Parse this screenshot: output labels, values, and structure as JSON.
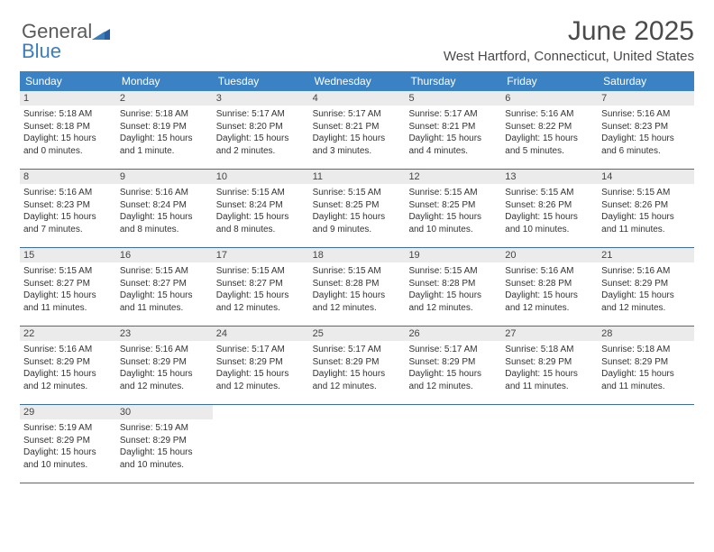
{
  "logo": {
    "general": "General",
    "blue": "Blue"
  },
  "title": "June 2025",
  "location": "West Hartford, Connecticut, United States",
  "colors": {
    "header_bar": "#3b82c4",
    "header_text": "#ffffff",
    "daynum_bg": "#ebebeb",
    "rule": "#3b6fa0",
    "body_text": "#333333",
    "logo_gray": "#5a5a5a",
    "logo_blue": "#3b7ec0"
  },
  "daysOfWeek": [
    "Sunday",
    "Monday",
    "Tuesday",
    "Wednesday",
    "Thursday",
    "Friday",
    "Saturday"
  ],
  "weeks": [
    [
      {
        "n": "1",
        "sr": "Sunrise: 5:18 AM",
        "ss": "Sunset: 8:18 PM",
        "dl": "Daylight: 15 hours and 0 minutes."
      },
      {
        "n": "2",
        "sr": "Sunrise: 5:18 AM",
        "ss": "Sunset: 8:19 PM",
        "dl": "Daylight: 15 hours and 1 minute."
      },
      {
        "n": "3",
        "sr": "Sunrise: 5:17 AM",
        "ss": "Sunset: 8:20 PM",
        "dl": "Daylight: 15 hours and 2 minutes."
      },
      {
        "n": "4",
        "sr": "Sunrise: 5:17 AM",
        "ss": "Sunset: 8:21 PM",
        "dl": "Daylight: 15 hours and 3 minutes."
      },
      {
        "n": "5",
        "sr": "Sunrise: 5:17 AM",
        "ss": "Sunset: 8:21 PM",
        "dl": "Daylight: 15 hours and 4 minutes."
      },
      {
        "n": "6",
        "sr": "Sunrise: 5:16 AM",
        "ss": "Sunset: 8:22 PM",
        "dl": "Daylight: 15 hours and 5 minutes."
      },
      {
        "n": "7",
        "sr": "Sunrise: 5:16 AM",
        "ss": "Sunset: 8:23 PM",
        "dl": "Daylight: 15 hours and 6 minutes."
      }
    ],
    [
      {
        "n": "8",
        "sr": "Sunrise: 5:16 AM",
        "ss": "Sunset: 8:23 PM",
        "dl": "Daylight: 15 hours and 7 minutes."
      },
      {
        "n": "9",
        "sr": "Sunrise: 5:16 AM",
        "ss": "Sunset: 8:24 PM",
        "dl": "Daylight: 15 hours and 8 minutes."
      },
      {
        "n": "10",
        "sr": "Sunrise: 5:15 AM",
        "ss": "Sunset: 8:24 PM",
        "dl": "Daylight: 15 hours and 8 minutes."
      },
      {
        "n": "11",
        "sr": "Sunrise: 5:15 AM",
        "ss": "Sunset: 8:25 PM",
        "dl": "Daylight: 15 hours and 9 minutes."
      },
      {
        "n": "12",
        "sr": "Sunrise: 5:15 AM",
        "ss": "Sunset: 8:25 PM",
        "dl": "Daylight: 15 hours and 10 minutes."
      },
      {
        "n": "13",
        "sr": "Sunrise: 5:15 AM",
        "ss": "Sunset: 8:26 PM",
        "dl": "Daylight: 15 hours and 10 minutes."
      },
      {
        "n": "14",
        "sr": "Sunrise: 5:15 AM",
        "ss": "Sunset: 8:26 PM",
        "dl": "Daylight: 15 hours and 11 minutes."
      }
    ],
    [
      {
        "n": "15",
        "sr": "Sunrise: 5:15 AM",
        "ss": "Sunset: 8:27 PM",
        "dl": "Daylight: 15 hours and 11 minutes."
      },
      {
        "n": "16",
        "sr": "Sunrise: 5:15 AM",
        "ss": "Sunset: 8:27 PM",
        "dl": "Daylight: 15 hours and 11 minutes."
      },
      {
        "n": "17",
        "sr": "Sunrise: 5:15 AM",
        "ss": "Sunset: 8:27 PM",
        "dl": "Daylight: 15 hours and 12 minutes."
      },
      {
        "n": "18",
        "sr": "Sunrise: 5:15 AM",
        "ss": "Sunset: 8:28 PM",
        "dl": "Daylight: 15 hours and 12 minutes."
      },
      {
        "n": "19",
        "sr": "Sunrise: 5:15 AM",
        "ss": "Sunset: 8:28 PM",
        "dl": "Daylight: 15 hours and 12 minutes."
      },
      {
        "n": "20",
        "sr": "Sunrise: 5:16 AM",
        "ss": "Sunset: 8:28 PM",
        "dl": "Daylight: 15 hours and 12 minutes."
      },
      {
        "n": "21",
        "sr": "Sunrise: 5:16 AM",
        "ss": "Sunset: 8:29 PM",
        "dl": "Daylight: 15 hours and 12 minutes."
      }
    ],
    [
      {
        "n": "22",
        "sr": "Sunrise: 5:16 AM",
        "ss": "Sunset: 8:29 PM",
        "dl": "Daylight: 15 hours and 12 minutes."
      },
      {
        "n": "23",
        "sr": "Sunrise: 5:16 AM",
        "ss": "Sunset: 8:29 PM",
        "dl": "Daylight: 15 hours and 12 minutes."
      },
      {
        "n": "24",
        "sr": "Sunrise: 5:17 AM",
        "ss": "Sunset: 8:29 PM",
        "dl": "Daylight: 15 hours and 12 minutes."
      },
      {
        "n": "25",
        "sr": "Sunrise: 5:17 AM",
        "ss": "Sunset: 8:29 PM",
        "dl": "Daylight: 15 hours and 12 minutes."
      },
      {
        "n": "26",
        "sr": "Sunrise: 5:17 AM",
        "ss": "Sunset: 8:29 PM",
        "dl": "Daylight: 15 hours and 12 minutes."
      },
      {
        "n": "27",
        "sr": "Sunrise: 5:18 AM",
        "ss": "Sunset: 8:29 PM",
        "dl": "Daylight: 15 hours and 11 minutes."
      },
      {
        "n": "28",
        "sr": "Sunrise: 5:18 AM",
        "ss": "Sunset: 8:29 PM",
        "dl": "Daylight: 15 hours and 11 minutes."
      }
    ],
    [
      {
        "n": "29",
        "sr": "Sunrise: 5:19 AM",
        "ss": "Sunset: 8:29 PM",
        "dl": "Daylight: 15 hours and 10 minutes."
      },
      {
        "n": "30",
        "sr": "Sunrise: 5:19 AM",
        "ss": "Sunset: 8:29 PM",
        "dl": "Daylight: 15 hours and 10 minutes."
      },
      {
        "empty": true
      },
      {
        "empty": true
      },
      {
        "empty": true
      },
      {
        "empty": true
      },
      {
        "empty": true
      }
    ]
  ]
}
